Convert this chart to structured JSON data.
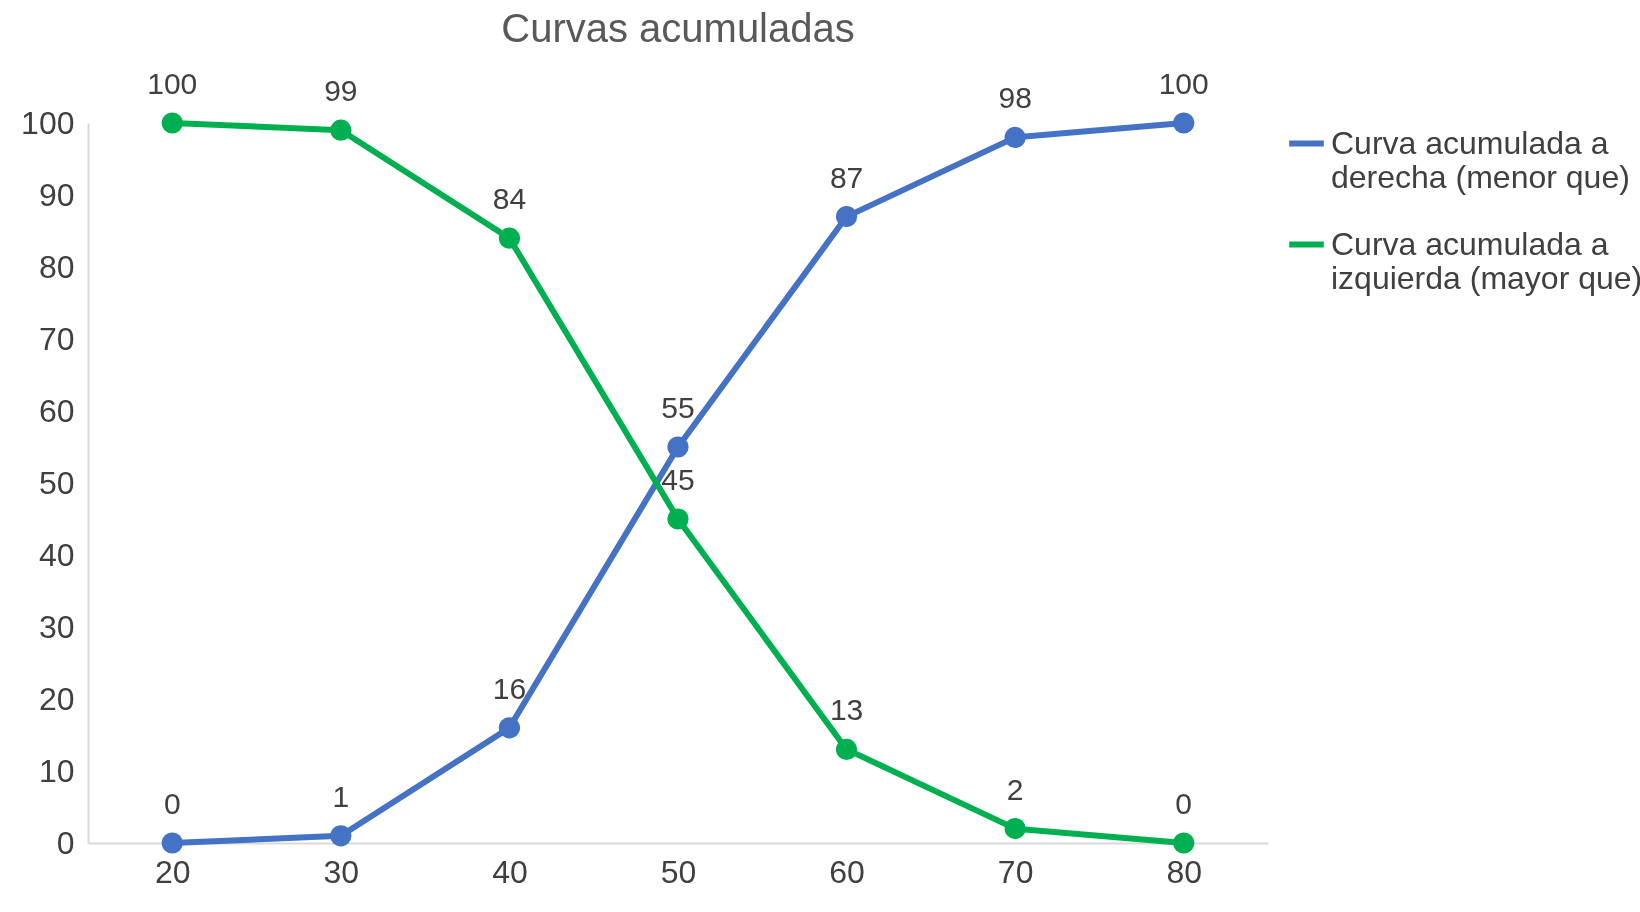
{
  "chart_data": {
    "type": "line",
    "title": "Curvas acumuladas",
    "categories": [
      "20",
      "30",
      "40",
      "50",
      "60",
      "70",
      "80"
    ],
    "series": [
      {
        "name": "Curva acumulada a derecha (menor que)",
        "color": "#4472c4",
        "values": [
          0,
          1,
          16,
          55,
          87,
          98,
          100
        ]
      },
      {
        "name": "Curva acumulada a izquierda (mayor que)",
        "color": "#00b050",
        "values": [
          100,
          99,
          84,
          45,
          13,
          2,
          0
        ]
      }
    ],
    "ylim": [
      0,
      100
    ],
    "yticks": [
      0,
      10,
      20,
      30,
      40,
      50,
      60,
      70,
      80,
      90,
      100
    ],
    "grid": false,
    "legend": "right",
    "marker": "circle",
    "line_style": "solid",
    "data_labels": true
  }
}
